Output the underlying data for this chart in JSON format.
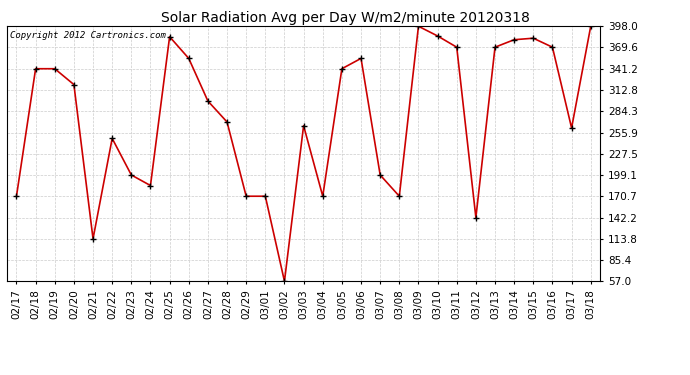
{
  "title": "Solar Radiation Avg per Day W/m2/minute 20120318",
  "copyright_text": "Copyright 2012 Cartronics.com",
  "dates": [
    "02/17",
    "02/18",
    "02/19",
    "02/20",
    "02/21",
    "02/22",
    "02/23",
    "02/24",
    "02/25",
    "02/26",
    "02/27",
    "02/28",
    "02/29",
    "03/01",
    "03/02",
    "03/03",
    "03/04",
    "03/05",
    "03/06",
    "03/07",
    "03/08",
    "03/09",
    "03/10",
    "03/11",
    "03/12",
    "03/13",
    "03/14",
    "03/15",
    "03/16",
    "03/17",
    "03/18"
  ],
  "values": [
    170.7,
    341.2,
    341.2,
    320.0,
    113.8,
    248.0,
    199.1,
    185.0,
    384.0,
    355.0,
    298.0,
    270.0,
    170.7,
    170.7,
    57.0,
    265.0,
    170.7,
    341.2,
    355.0,
    199.1,
    170.7,
    398.0,
    385.0,
    370.0,
    142.2,
    370.0,
    380.0,
    382.0,
    370.0,
    262.0,
    398.0
  ],
  "line_color": "#cc0000",
  "marker": "+",
  "marker_size": 5,
  "marker_color": "#000000",
  "bg_color": "#ffffff",
  "plot_bg_color": "#ffffff",
  "grid_color": "#cccccc",
  "y_min": 57.0,
  "y_max": 398.0,
  "y_ticks": [
    57.0,
    85.4,
    113.8,
    142.2,
    170.7,
    199.1,
    227.5,
    255.9,
    284.3,
    312.8,
    341.2,
    369.6,
    398.0
  ],
  "title_fontsize": 10,
  "tick_fontsize": 7.5,
  "copyright_fontsize": 6.5
}
